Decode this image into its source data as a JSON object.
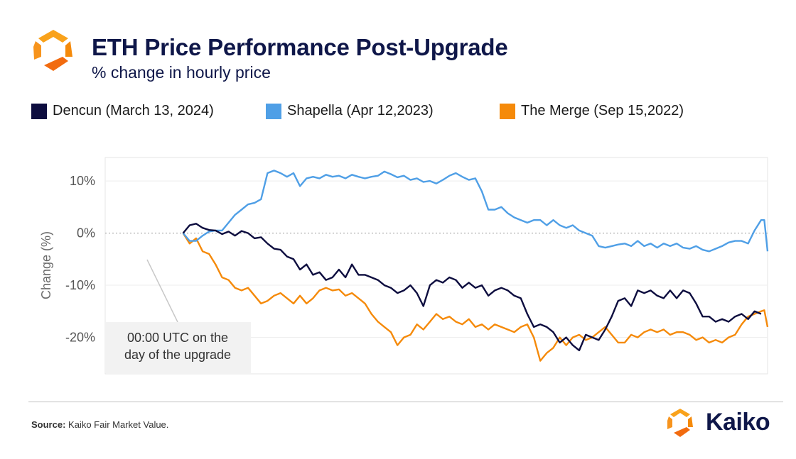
{
  "header": {
    "title": "ETH Price Performance Post-Upgrade",
    "subtitle": "% change in hourly price"
  },
  "legend": {
    "items": [
      {
        "label": "Dencun (March 13, 2024)",
        "color": "#0d0d3f"
      },
      {
        "label": "Shapella (Apr 12,2023)",
        "color": "#4f9fe6"
      },
      {
        "label": "The Merge (Sep 15,2022)",
        "color": "#f58a0a"
      }
    ]
  },
  "annotation": {
    "line1": "00:00 UTC on the",
    "line2": "day of the upgrade"
  },
  "footer": {
    "source_label": "Source:",
    "source_text": "Kaiko Fair Market Value.",
    "brand": "Kaiko"
  },
  "colors": {
    "brand_orange": "#f58a0a",
    "brand_navy": "#0f1749"
  },
  "icons": {
    "logo": "kaiko-logo-icon"
  },
  "chart_data": {
    "type": "line",
    "title": "ETH Price Performance Post-Upgrade",
    "subtitle": "% change in hourly price",
    "xlabel": "",
    "ylabel": "Change (%)",
    "ylim": [
      -27,
      14.5
    ],
    "yticks": [
      10,
      0,
      -10,
      -20
    ],
    "ytick_labels": [
      "10%",
      "0%",
      "-10%",
      "-20%"
    ],
    "x_unit": "hours from 00:00 UTC on the day of the upgrade",
    "xlim": [
      -72,
      540
    ],
    "grid": true,
    "zero_line": "dashed",
    "legend_position": "top",
    "series": [
      {
        "name": "Dencun (March 13, 2024)",
        "color": "#0d0d3f",
        "points": [
          [
            0,
            0
          ],
          [
            6,
            1.5
          ],
          [
            12,
            1.8
          ],
          [
            18,
            1.0
          ],
          [
            24,
            0.6
          ],
          [
            30,
            0.5
          ],
          [
            36,
            -0.2
          ],
          [
            42,
            0.3
          ],
          [
            48,
            -0.5
          ],
          [
            54,
            0.4
          ],
          [
            60,
            0.0
          ],
          [
            66,
            -1.0
          ],
          [
            72,
            -0.8
          ],
          [
            78,
            -2.0
          ],
          [
            84,
            -3.0
          ],
          [
            90,
            -3.2
          ],
          [
            96,
            -4.5
          ],
          [
            102,
            -5.0
          ],
          [
            108,
            -7.0
          ],
          [
            114,
            -6.0
          ],
          [
            120,
            -8.0
          ],
          [
            126,
            -7.5
          ],
          [
            132,
            -9.0
          ],
          [
            138,
            -8.5
          ],
          [
            144,
            -7.0
          ],
          [
            150,
            -8.5
          ],
          [
            156,
            -6.0
          ],
          [
            162,
            -8.0
          ],
          [
            168,
            -8.0
          ],
          [
            174,
            -8.5
          ],
          [
            180,
            -9.0
          ],
          [
            186,
            -10.0
          ],
          [
            192,
            -10.5
          ],
          [
            198,
            -11.5
          ],
          [
            204,
            -11.0
          ],
          [
            210,
            -10.0
          ],
          [
            216,
            -11.5
          ],
          [
            222,
            -14.0
          ],
          [
            228,
            -10.0
          ],
          [
            234,
            -9.0
          ],
          [
            240,
            -9.5
          ],
          [
            246,
            -8.5
          ],
          [
            252,
            -9.0
          ],
          [
            258,
            -10.5
          ],
          [
            264,
            -9.5
          ],
          [
            270,
            -10.5
          ],
          [
            276,
            -10.0
          ],
          [
            282,
            -12.0
          ],
          [
            288,
            -11.0
          ],
          [
            294,
            -10.5
          ],
          [
            300,
            -11.0
          ],
          [
            306,
            -12.0
          ],
          [
            312,
            -12.5
          ],
          [
            318,
            -15.5
          ],
          [
            324,
            -18.0
          ],
          [
            330,
            -17.5
          ],
          [
            336,
            -18.0
          ],
          [
            342,
            -19.0
          ],
          [
            348,
            -21.0
          ],
          [
            354,
            -20.0
          ],
          [
            360,
            -21.5
          ],
          [
            366,
            -22.5
          ],
          [
            372,
            -19.5
          ],
          [
            378,
            -20.0
          ],
          [
            384,
            -20.5
          ],
          [
            390,
            -18.5
          ],
          [
            396,
            -16.0
          ],
          [
            402,
            -13.0
          ],
          [
            408,
            -12.5
          ],
          [
            414,
            -14.0
          ],
          [
            420,
            -11.0
          ],
          [
            426,
            -11.5
          ],
          [
            432,
            -11.0
          ],
          [
            438,
            -12.0
          ],
          [
            444,
            -12.5
          ],
          [
            450,
            -11.0
          ],
          [
            456,
            -12.5
          ],
          [
            462,
            -11.0
          ],
          [
            468,
            -11.5
          ],
          [
            474,
            -13.5
          ],
          [
            480,
            -16.0
          ],
          [
            486,
            -16.0
          ],
          [
            492,
            -17.0
          ],
          [
            498,
            -16.5
          ],
          [
            504,
            -17.0
          ],
          [
            510,
            -16.0
          ],
          [
            516,
            -15.5
          ],
          [
            522,
            -16.5
          ],
          [
            528,
            -15.0
          ],
          [
            534,
            -15.5
          ]
        ]
      },
      {
        "name": "Shapella (Apr 12,2023)",
        "color": "#4f9fe6",
        "points": [
          [
            0,
            0
          ],
          [
            6,
            -1.5
          ],
          [
            12,
            -1.5
          ],
          [
            18,
            -0.5
          ],
          [
            24,
            0.3
          ],
          [
            30,
            0.5
          ],
          [
            36,
            0.5
          ],
          [
            42,
            2.0
          ],
          [
            48,
            3.5
          ],
          [
            54,
            4.5
          ],
          [
            60,
            5.5
          ],
          [
            66,
            5.8
          ],
          [
            72,
            6.5
          ],
          [
            78,
            11.5
          ],
          [
            84,
            12.0
          ],
          [
            90,
            11.5
          ],
          [
            96,
            10.8
          ],
          [
            102,
            11.5
          ],
          [
            108,
            9.0
          ],
          [
            114,
            10.5
          ],
          [
            120,
            10.8
          ],
          [
            126,
            10.5
          ],
          [
            132,
            11.2
          ],
          [
            138,
            10.8
          ],
          [
            144,
            11.0
          ],
          [
            150,
            10.5
          ],
          [
            156,
            11.2
          ],
          [
            162,
            10.8
          ],
          [
            168,
            10.5
          ],
          [
            174,
            10.8
          ],
          [
            180,
            11.0
          ],
          [
            186,
            11.8
          ],
          [
            192,
            11.3
          ],
          [
            198,
            10.7
          ],
          [
            204,
            11.0
          ],
          [
            210,
            10.2
          ],
          [
            216,
            10.5
          ],
          [
            222,
            9.8
          ],
          [
            228,
            10.0
          ],
          [
            234,
            9.5
          ],
          [
            240,
            10.2
          ],
          [
            246,
            11.0
          ],
          [
            252,
            11.5
          ],
          [
            258,
            10.8
          ],
          [
            264,
            10.2
          ],
          [
            270,
            10.5
          ],
          [
            276,
            8.0
          ],
          [
            282,
            4.5
          ],
          [
            288,
            4.5
          ],
          [
            294,
            5.0
          ],
          [
            300,
            3.8
          ],
          [
            306,
            3.0
          ],
          [
            312,
            2.5
          ],
          [
            318,
            2.0
          ],
          [
            324,
            2.5
          ],
          [
            330,
            2.5
          ],
          [
            336,
            1.5
          ],
          [
            342,
            2.5
          ],
          [
            348,
            1.5
          ],
          [
            354,
            1.0
          ],
          [
            360,
            1.5
          ],
          [
            366,
            0.5
          ],
          [
            372,
            0.0
          ],
          [
            378,
            -0.5
          ],
          [
            384,
            -2.5
          ],
          [
            390,
            -2.8
          ],
          [
            396,
            -2.5
          ],
          [
            402,
            -2.2
          ],
          [
            408,
            -2.0
          ],
          [
            414,
            -2.5
          ],
          [
            420,
            -1.5
          ],
          [
            426,
            -2.5
          ],
          [
            432,
            -2.0
          ],
          [
            438,
            -2.8
          ],
          [
            444,
            -2.0
          ],
          [
            450,
            -2.5
          ],
          [
            456,
            -2.0
          ],
          [
            462,
            -2.8
          ],
          [
            468,
            -3.0
          ],
          [
            474,
            -2.5
          ],
          [
            480,
            -3.2
          ],
          [
            486,
            -3.5
          ],
          [
            492,
            -3.0
          ],
          [
            498,
            -2.5
          ],
          [
            504,
            -1.8
          ],
          [
            510,
            -1.5
          ],
          [
            516,
            -1.5
          ],
          [
            522,
            -2.0
          ],
          [
            528,
            0.5
          ],
          [
            534,
            2.5
          ],
          [
            537,
            2.5
          ],
          [
            540,
            -3.5
          ]
        ]
      },
      {
        "name": "The Merge (Sep 15,2022)",
        "color": "#f58a0a",
        "points": [
          [
            0,
            0
          ],
          [
            6,
            -2.0
          ],
          [
            12,
            -1.0
          ],
          [
            18,
            -3.5
          ],
          [
            24,
            -4.0
          ],
          [
            30,
            -6.0
          ],
          [
            36,
            -8.5
          ],
          [
            42,
            -9.0
          ],
          [
            48,
            -10.5
          ],
          [
            54,
            -11.0
          ],
          [
            60,
            -10.5
          ],
          [
            66,
            -12.0
          ],
          [
            72,
            -13.5
          ],
          [
            78,
            -13.0
          ],
          [
            84,
            -12.0
          ],
          [
            90,
            -11.5
          ],
          [
            96,
            -12.5
          ],
          [
            102,
            -13.5
          ],
          [
            108,
            -12.0
          ],
          [
            114,
            -13.5
          ],
          [
            120,
            -12.5
          ],
          [
            126,
            -11.0
          ],
          [
            132,
            -10.5
          ],
          [
            138,
            -11.0
          ],
          [
            144,
            -10.8
          ],
          [
            150,
            -12.0
          ],
          [
            156,
            -11.5
          ],
          [
            162,
            -12.5
          ],
          [
            168,
            -13.5
          ],
          [
            174,
            -15.5
          ],
          [
            180,
            -17.0
          ],
          [
            186,
            -18.0
          ],
          [
            192,
            -19.0
          ],
          [
            198,
            -21.5
          ],
          [
            204,
            -20.0
          ],
          [
            210,
            -19.5
          ],
          [
            216,
            -17.5
          ],
          [
            222,
            -18.5
          ],
          [
            228,
            -17.0
          ],
          [
            234,
            -15.5
          ],
          [
            240,
            -16.5
          ],
          [
            246,
            -16.0
          ],
          [
            252,
            -17.0
          ],
          [
            258,
            -17.5
          ],
          [
            264,
            -16.5
          ],
          [
            270,
            -18.0
          ],
          [
            276,
            -17.5
          ],
          [
            282,
            -18.5
          ],
          [
            288,
            -17.5
          ],
          [
            294,
            -18.0
          ],
          [
            300,
            -18.5
          ],
          [
            306,
            -19.0
          ],
          [
            312,
            -18.0
          ],
          [
            318,
            -17.5
          ],
          [
            324,
            -20.0
          ],
          [
            330,
            -24.5
          ],
          [
            336,
            -23.0
          ],
          [
            342,
            -22.0
          ],
          [
            348,
            -20.0
          ],
          [
            354,
            -21.5
          ],
          [
            360,
            -20.0
          ],
          [
            366,
            -19.5
          ],
          [
            372,
            -20.5
          ],
          [
            378,
            -20.0
          ],
          [
            384,
            -19.0
          ],
          [
            390,
            -18.0
          ],
          [
            396,
            -19.5
          ],
          [
            402,
            -21.0
          ],
          [
            408,
            -21.0
          ],
          [
            414,
            -19.5
          ],
          [
            420,
            -20.0
          ],
          [
            426,
            -19.0
          ],
          [
            432,
            -18.5
          ],
          [
            438,
            -19.0
          ],
          [
            444,
            -18.5
          ],
          [
            450,
            -19.5
          ],
          [
            456,
            -19.0
          ],
          [
            462,
            -19.0
          ],
          [
            468,
            -19.5
          ],
          [
            474,
            -20.5
          ],
          [
            480,
            -20.0
          ],
          [
            486,
            -21.0
          ],
          [
            492,
            -20.5
          ],
          [
            498,
            -21.0
          ],
          [
            504,
            -20.0
          ],
          [
            510,
            -19.5
          ],
          [
            516,
            -17.5
          ],
          [
            522,
            -16.0
          ],
          [
            528,
            -15.5
          ],
          [
            534,
            -15.0
          ],
          [
            537,
            -14.8
          ],
          [
            540,
            -18.0
          ]
        ]
      }
    ]
  }
}
